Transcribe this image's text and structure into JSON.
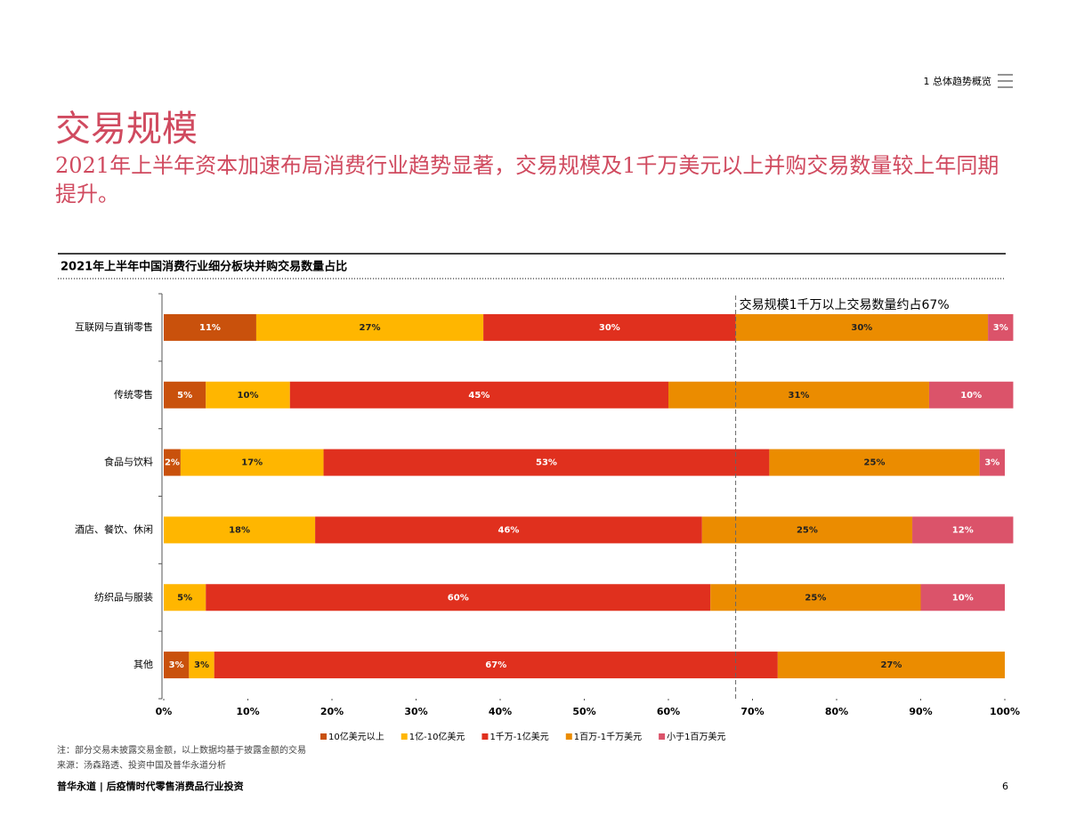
{
  "header": {
    "section": "1 总体趋势概览",
    "title": "交易规模",
    "subtitle": "2021年上半年资本加速布局消费行业趋势显著，交易规模及1千万美元以上并购交易数量较上年同期提升。"
  },
  "chart_data": {
    "type": "stacked-bar-horizontal",
    "title": "2021年上半年中国消费行业细分板块并购交易数量占比",
    "categories": [
      "互联网与直销零售",
      "传统零售",
      "食品与饮料",
      "酒店、餐饮、休闲",
      "纺织品与服装",
      "其他"
    ],
    "series": [
      {
        "name": "10亿美元以上",
        "color": "#c9510c",
        "values": [
          11,
          5,
          2,
          null,
          null,
          3
        ],
        "value_labels": [
          "11%",
          "5%",
          "2%",
          null,
          null,
          "3%"
        ]
      },
      {
        "name": "1亿-10亿美元",
        "color": "#ffb600",
        "values": [
          27,
          10,
          17,
          18,
          5,
          3
        ],
        "value_labels": [
          "27%",
          "10%",
          "17%",
          "18%",
          "5%",
          "3%"
        ]
      },
      {
        "name": "1千万-1亿美元",
        "color": "#e0301e",
        "values": [
          30,
          45,
          53,
          46,
          60,
          67
        ],
        "value_labels": [
          "30%",
          "45%",
          "53%",
          "46%",
          "60%",
          "67%"
        ]
      },
      {
        "name": "1百万-1千万美元",
        "color": "#eb8c00",
        "values": [
          30,
          31,
          25,
          25,
          25,
          27
        ],
        "value_labels": [
          "30%",
          "31%",
          "25%",
          "25%",
          "25%",
          "27%"
        ]
      },
      {
        "name": "小于1百万美元",
        "color": "#db536a",
        "values": [
          3,
          10,
          3,
          12,
          10,
          null
        ],
        "value_labels": [
          "3%",
          "10%",
          "3%",
          "12%",
          "10%",
          null
        ]
      }
    ],
    "xlim": [
      0,
      100
    ],
    "xticks": [
      {
        "value": 0,
        "label": "0%"
      },
      {
        "value": 10,
        "label": "10%"
      },
      {
        "value": 20,
        "label": "20%"
      },
      {
        "value": 30,
        "label": "30%"
      },
      {
        "value": 40,
        "label": "40%"
      },
      {
        "value": 50,
        "label": "50%"
      },
      {
        "value": 60,
        "label": "60%"
      },
      {
        "value": 70,
        "label": "70%"
      },
      {
        "value": 80,
        "label": "80%"
      },
      {
        "value": 90,
        "label": "90%"
      },
      {
        "value": 100,
        "label": "100%"
      }
    ],
    "annotation": {
      "text": "交易规模1千万以上交易数量约占67%",
      "x": 68
    }
  },
  "notes": {
    "note": "注：部分交易未披露交易金额，以上数据均基于披露金额的交易",
    "source": "来源：汤森路透、投资中国及普华永道分析"
  },
  "footer": {
    "text": "普华永道 | 后疫情时代零售消费品行业投资",
    "page": "6"
  }
}
